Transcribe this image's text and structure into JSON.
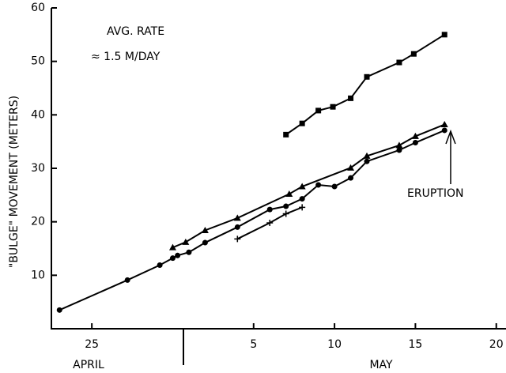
{
  "chart_data": {
    "type": "line",
    "y_label": "\"BULGE\" MOVEMENT (METERS)",
    "annotations": [
      "AVG. RATE",
      "≈ 1.5 M/DAY",
      "ERUPTION"
    ],
    "month_labels": [
      "APRIL",
      "MAY"
    ],
    "xlim": [
      22.5,
      50.6
    ],
    "xticks": [
      25,
      {
        "value": 35,
        "label": "5"
      },
      {
        "value": 40,
        "label": "10"
      },
      {
        "value": 45,
        "label": "15"
      },
      {
        "value": 50,
        "label": "20"
      }
    ],
    "ylim": [
      0,
      60
    ],
    "yticks": [
      10,
      20,
      30,
      40,
      50,
      60
    ],
    "series": [
      {
        "marker": "circle",
        "color": "#000000",
        "x": [
          23,
          27.2,
          29.2,
          30,
          30.3,
          31,
          32,
          34,
          36,
          37,
          38,
          39,
          40,
          41,
          42,
          44,
          45,
          46.8
        ],
        "values": [
          3.5,
          9.1,
          11.9,
          13.2,
          13.7,
          14.3,
          16.1,
          19,
          22.3,
          22.9,
          24.3,
          26.9,
          26.6,
          28.2,
          31.3,
          33.4,
          34.8,
          37.1
        ]
      },
      {
        "marker": "triangle",
        "color": "#000000",
        "x": [
          30,
          30.8,
          32,
          34,
          37.2,
          38,
          41,
          42,
          44,
          45,
          46.8
        ],
        "values": [
          15.2,
          16.2,
          18.4,
          20.7,
          25.2,
          26.6,
          30.1,
          32.3,
          34.3,
          36,
          38.2
        ]
      },
      {
        "marker": "square",
        "color": "#000000",
        "x": [
          37,
          38,
          39,
          39.9,
          41,
          42,
          44,
          44.9,
          46.8
        ],
        "values": [
          36.3,
          38.4,
          40.8,
          41.5,
          43.1,
          47.1,
          49.8,
          51.4,
          55
        ]
      },
      {
        "marker": "cross",
        "color": "#000000",
        "x": [
          34,
          36,
          37,
          38
        ],
        "values": [
          16.8,
          19.8,
          21.5,
          22.7
        ]
      }
    ]
  }
}
